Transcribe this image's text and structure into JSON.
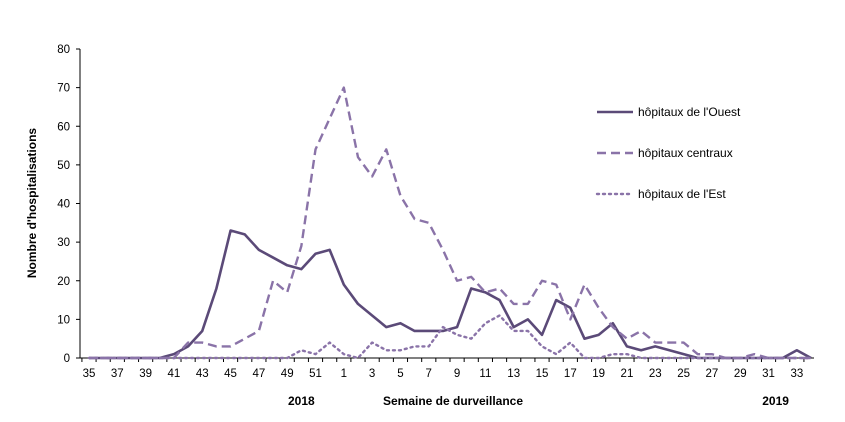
{
  "chart_data": {
    "type": "line",
    "ylabel": "Nombre d'hospitalisations",
    "xlabel": "Semaine de durveillance",
    "year_labels": [
      {
        "text": "2018",
        "at_week_index": 15
      },
      {
        "text": "2019",
        "at_week_index": 48.5
      }
    ],
    "ylim": [
      0,
      80
    ],
    "y_ticks": [
      0,
      10,
      20,
      30,
      40,
      50,
      60,
      70,
      80
    ],
    "x_tick_labels": [
      "35",
      "37",
      "39",
      "41",
      "43",
      "45",
      "47",
      "49",
      "51",
      "1",
      "3",
      "5",
      "7",
      "9",
      "11",
      "13",
      "15",
      "17",
      "19",
      "21",
      "23",
      "25",
      "27",
      "29",
      "31",
      "33"
    ],
    "weeks": [
      "35",
      "36",
      "37",
      "38",
      "39",
      "40",
      "41",
      "42",
      "43",
      "44",
      "45",
      "46",
      "47",
      "48",
      "49",
      "50",
      "51",
      "52",
      "1",
      "2",
      "3",
      "4",
      "5",
      "6",
      "7",
      "8",
      "9",
      "10",
      "11",
      "12",
      "13",
      "14",
      "15",
      "16",
      "17",
      "18",
      "19",
      "20",
      "21",
      "22",
      "23",
      "24",
      "25",
      "26",
      "27",
      "28",
      "29",
      "30",
      "31",
      "32",
      "33",
      "34"
    ],
    "grid": false,
    "legend_position": "right",
    "series": [
      {
        "name": "hôpitaux de l'Ouest",
        "style": "solid",
        "color": "#5b4a78",
        "values": [
          0,
          0,
          0,
          0,
          0,
          0,
          1,
          3,
          7,
          18,
          33,
          32,
          28,
          26,
          24,
          23,
          27,
          28,
          19,
          14,
          11,
          8,
          9,
          7,
          7,
          7,
          8,
          18,
          17,
          15,
          8,
          10,
          6,
          15,
          13,
          5,
          6,
          9,
          3,
          2,
          3,
          2,
          1,
          0,
          0,
          0,
          0,
          0,
          0,
          0,
          2,
          0
        ]
      },
      {
        "name": "hôpitaux centraux",
        "style": "dashed",
        "color": "#8a73a8",
        "values": [
          0,
          0,
          0,
          0,
          0,
          0,
          0,
          4,
          4,
          3,
          3,
          5,
          7,
          20,
          17,
          29,
          54,
          62,
          70,
          52,
          47,
          54,
          42,
          36,
          35,
          28,
          20,
          21,
          17,
          18,
          14,
          14,
          20,
          19,
          10,
          19,
          13,
          8,
          5,
          7,
          4,
          4,
          4,
          1,
          1,
          0,
          0,
          1,
          0,
          0,
          0,
          0
        ]
      },
      {
        "name": "hôpitaux de l'Est",
        "style": "dotted",
        "color": "#8a73a8",
        "values": [
          0,
          0,
          0,
          0,
          0,
          0,
          0,
          0,
          0,
          0,
          0,
          0,
          0,
          0,
          0,
          2,
          1,
          4,
          1,
          0,
          4,
          2,
          2,
          3,
          3,
          8,
          6,
          5,
          9,
          11,
          7,
          7,
          3,
          1,
          4,
          0,
          0,
          1,
          1,
          0,
          0,
          0,
          0,
          0,
          0,
          0,
          0,
          0,
          0,
          0,
          0,
          0
        ]
      }
    ]
  }
}
